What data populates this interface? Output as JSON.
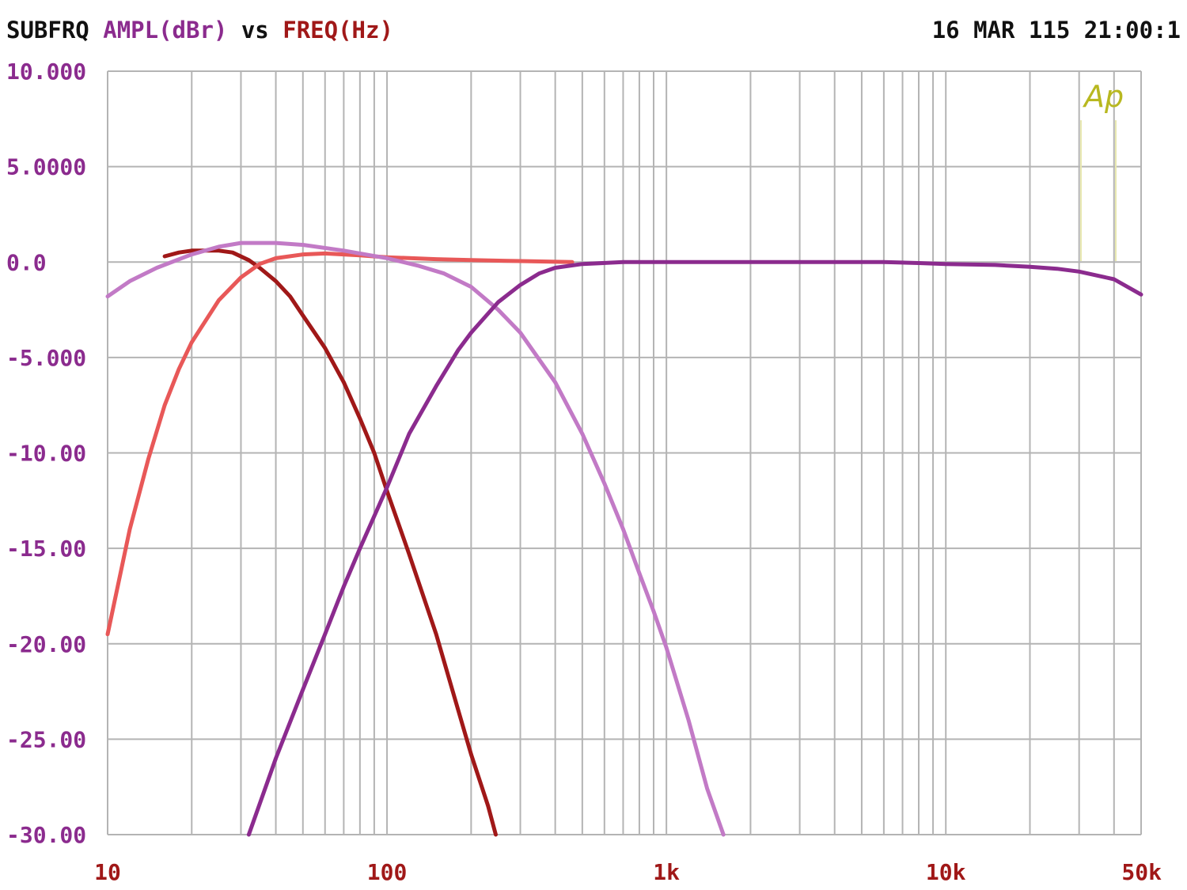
{
  "header": {
    "instrument": "SUBFRQ",
    "y_quantity": "AMPL(dBr)",
    "vs": "vs",
    "x_quantity": "FREQ(Hz)",
    "timestamp": "16 MAR 115 21:00:1"
  },
  "logo": "Ap",
  "colors": {
    "background": "#ffffff",
    "grid": "#b4b4b4",
    "y_axis_text": "#8b2b8e",
    "x_axis_text": "#a01818",
    "logo": "#b8b820"
  },
  "chart_data": {
    "type": "line",
    "title": "",
    "xlabel": "FREQ(Hz)",
    "ylabel": "AMPL(dBr)",
    "xscale": "log",
    "xlim": [
      10,
      50000
    ],
    "ylim": [
      -30,
      10
    ],
    "grid": true,
    "y_ticks": [
      {
        "value": 10,
        "label": "10.000"
      },
      {
        "value": 5,
        "label": "5.0000"
      },
      {
        "value": 0,
        "label": "0.0"
      },
      {
        "value": -5,
        "label": "-5.000"
      },
      {
        "value": -10,
        "label": "-10.00"
      },
      {
        "value": -15,
        "label": "-15.00"
      },
      {
        "value": -20,
        "label": "-20.00"
      },
      {
        "value": -25,
        "label": "-25.00"
      },
      {
        "value": -30,
        "label": "-30.00"
      }
    ],
    "x_ticks": [
      {
        "value": 10,
        "label": "10"
      },
      {
        "value": 100,
        "label": "100"
      },
      {
        "value": 1000,
        "label": "1k"
      },
      {
        "value": 10000,
        "label": "10k"
      },
      {
        "value": 50000,
        "label": "50k"
      }
    ],
    "series": [
      {
        "color": "#a01818",
        "points": [
          [
            16,
            0.3
          ],
          [
            18,
            0.5
          ],
          [
            20,
            0.6
          ],
          [
            25,
            0.6
          ],
          [
            28,
            0.5
          ],
          [
            32,
            0.1
          ],
          [
            35,
            -0.3
          ],
          [
            40,
            -1.0
          ],
          [
            45,
            -1.8
          ],
          [
            50,
            -2.8
          ],
          [
            60,
            -4.5
          ],
          [
            70,
            -6.3
          ],
          [
            80,
            -8.2
          ],
          [
            90,
            -10.0
          ],
          [
            100,
            -12.0
          ],
          [
            120,
            -15.3
          ],
          [
            150,
            -19.5
          ],
          [
            180,
            -23.5
          ],
          [
            200,
            -25.8
          ],
          [
            230,
            -28.5
          ],
          [
            245,
            -30.0
          ]
        ]
      },
      {
        "color": "#e85858",
        "points": [
          [
            10,
            -19.5
          ],
          [
            12,
            -14.0
          ],
          [
            14,
            -10.3
          ],
          [
            16,
            -7.5
          ],
          [
            18,
            -5.6
          ],
          [
            20,
            -4.2
          ],
          [
            25,
            -2.0
          ],
          [
            30,
            -0.8
          ],
          [
            35,
            -0.1
          ],
          [
            40,
            0.2
          ],
          [
            50,
            0.4
          ],
          [
            60,
            0.45
          ],
          [
            80,
            0.35
          ],
          [
            100,
            0.25
          ],
          [
            150,
            0.15
          ],
          [
            200,
            0.1
          ],
          [
            300,
            0.05
          ],
          [
            460,
            0.0
          ]
        ]
      },
      {
        "color": "#c27ac6",
        "points": [
          [
            10,
            -1.8
          ],
          [
            12,
            -1.0
          ],
          [
            15,
            -0.3
          ],
          [
            20,
            0.4
          ],
          [
            25,
            0.8
          ],
          [
            30,
            1.0
          ],
          [
            40,
            1.0
          ],
          [
            50,
            0.9
          ],
          [
            70,
            0.6
          ],
          [
            100,
            0.2
          ],
          [
            130,
            -0.2
          ],
          [
            160,
            -0.6
          ],
          [
            200,
            -1.3
          ],
          [
            250,
            -2.5
          ],
          [
            300,
            -3.7
          ],
          [
            400,
            -6.3
          ],
          [
            500,
            -9.0
          ],
          [
            600,
            -11.6
          ],
          [
            700,
            -14.0
          ],
          [
            800,
            -16.3
          ],
          [
            900,
            -18.3
          ],
          [
            1000,
            -20.2
          ],
          [
            1200,
            -24.0
          ],
          [
            1400,
            -27.6
          ],
          [
            1600,
            -30.0
          ]
        ]
      },
      {
        "color": "#8b2b8e",
        "points": [
          [
            32,
            -30.0
          ],
          [
            40,
            -26.0
          ],
          [
            50,
            -22.4
          ],
          [
            60,
            -19.5
          ],
          [
            70,
            -17.0
          ],
          [
            80,
            -15.0
          ],
          [
            100,
            -11.8
          ],
          [
            120,
            -9.0
          ],
          [
            150,
            -6.5
          ],
          [
            180,
            -4.6
          ],
          [
            200,
            -3.7
          ],
          [
            250,
            -2.1
          ],
          [
            300,
            -1.2
          ],
          [
            350,
            -0.6
          ],
          [
            400,
            -0.3
          ],
          [
            500,
            -0.1
          ],
          [
            700,
            0.0
          ],
          [
            1000,
            0.0
          ],
          [
            3000,
            0.0
          ],
          [
            6000,
            0.0
          ],
          [
            8000,
            -0.05
          ],
          [
            10000,
            -0.1
          ],
          [
            15000,
            -0.15
          ],
          [
            20000,
            -0.25
          ],
          [
            25000,
            -0.35
          ],
          [
            30000,
            -0.5
          ],
          [
            40000,
            -0.9
          ],
          [
            50000,
            -1.7
          ]
        ]
      }
    ]
  }
}
